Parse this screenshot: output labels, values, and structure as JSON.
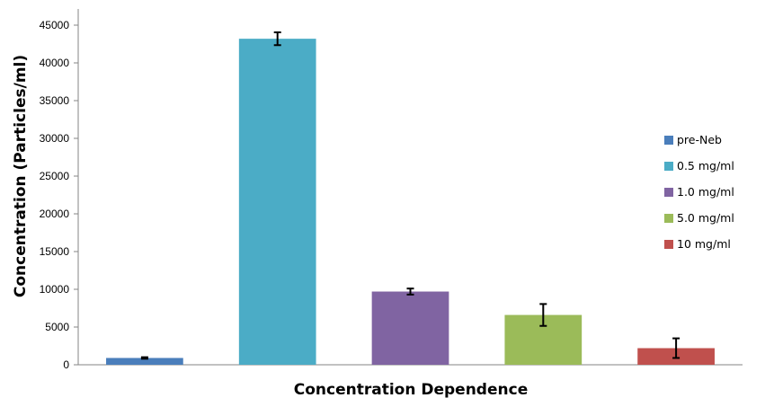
{
  "chart_data": {
    "type": "bar",
    "title": "",
    "xlabel": "Concentration Dependence",
    "ylabel": "Concentration (Particles/ml)",
    "ylim": [
      0,
      45000
    ],
    "yticks": [
      "0",
      "5000",
      "10000",
      "15000",
      "20000",
      "25000",
      "30000",
      "35000",
      "40000",
      "45000"
    ],
    "grid": false,
    "legend_position": "right",
    "series": [
      {
        "name": "pre-Neb",
        "value": 900,
        "error": 100,
        "color": "#4a7ebb"
      },
      {
        "name": "0.5 mg/ml",
        "value": 43200,
        "error": 850,
        "color": "#4bacc6"
      },
      {
        "name": "1.0 mg/ml",
        "value": 9700,
        "error": 400,
        "color": "#8064a2"
      },
      {
        "name": "5.0 mg/ml",
        "value": 6600,
        "error": 1450,
        "color": "#9bbb59"
      },
      {
        "name": "10 mg/ml",
        "value": 2200,
        "error": 1300,
        "color": "#c0504d"
      }
    ]
  }
}
